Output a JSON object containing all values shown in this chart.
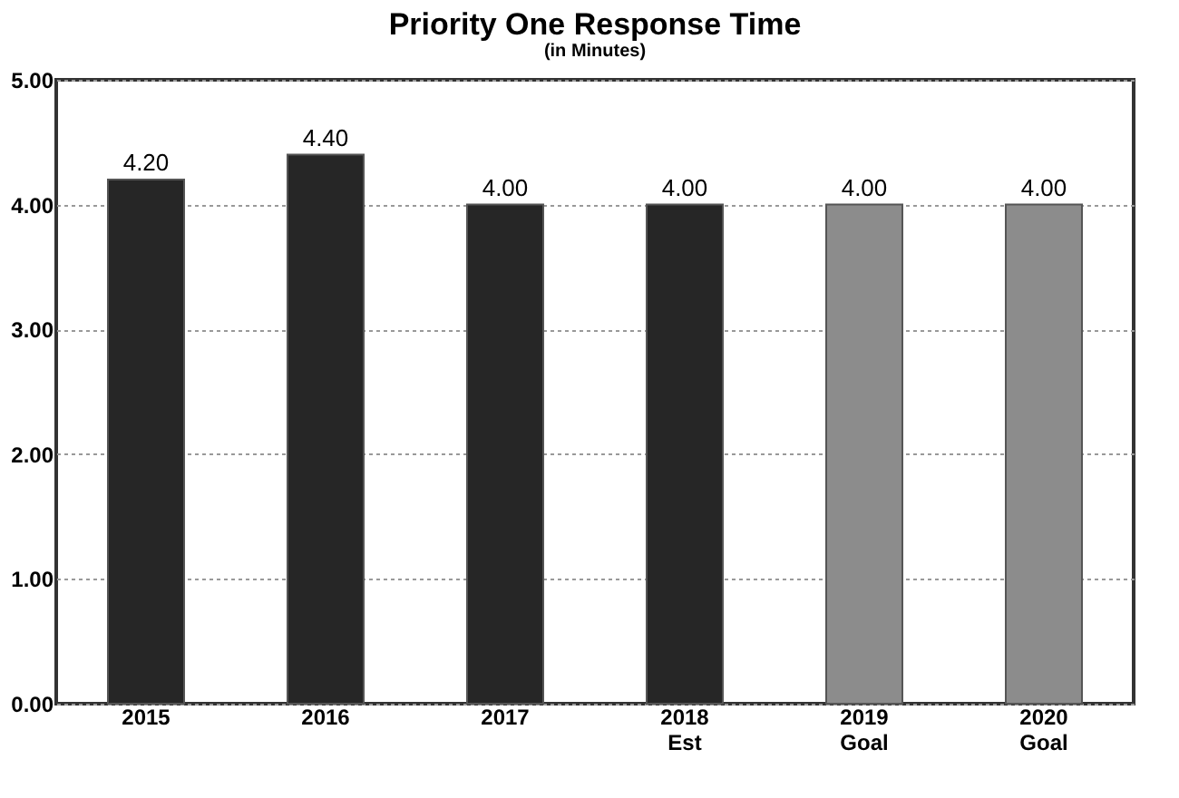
{
  "chart_data": {
    "type": "bar",
    "title": "Priority One Response Time",
    "subtitle": "(in Minutes)",
    "categories": [
      "2015",
      "2016",
      "2017",
      "2018 Est",
      "2019 Goal",
      "2020 Goal"
    ],
    "values": [
      4.2,
      4.4,
      4.0,
      4.0,
      4.0,
      4.0
    ],
    "value_labels": [
      "4.20",
      "4.40",
      "4.00",
      "4.00",
      "4.00",
      "4.00"
    ],
    "colors": [
      "#262626",
      "#262626",
      "#262626",
      "#262626",
      "#8c8c8c",
      "#8c8c8c"
    ],
    "ylim": [
      0,
      5
    ],
    "yticks": [
      {
        "value": 0,
        "label": "0.00"
      },
      {
        "value": 1,
        "label": "1.00"
      },
      {
        "value": 2,
        "label": "2.00"
      },
      {
        "value": 3,
        "label": "3.00"
      },
      {
        "value": 4,
        "label": "4.00"
      },
      {
        "value": 5,
        "label": "5.00"
      }
    ],
    "grid": "y"
  }
}
